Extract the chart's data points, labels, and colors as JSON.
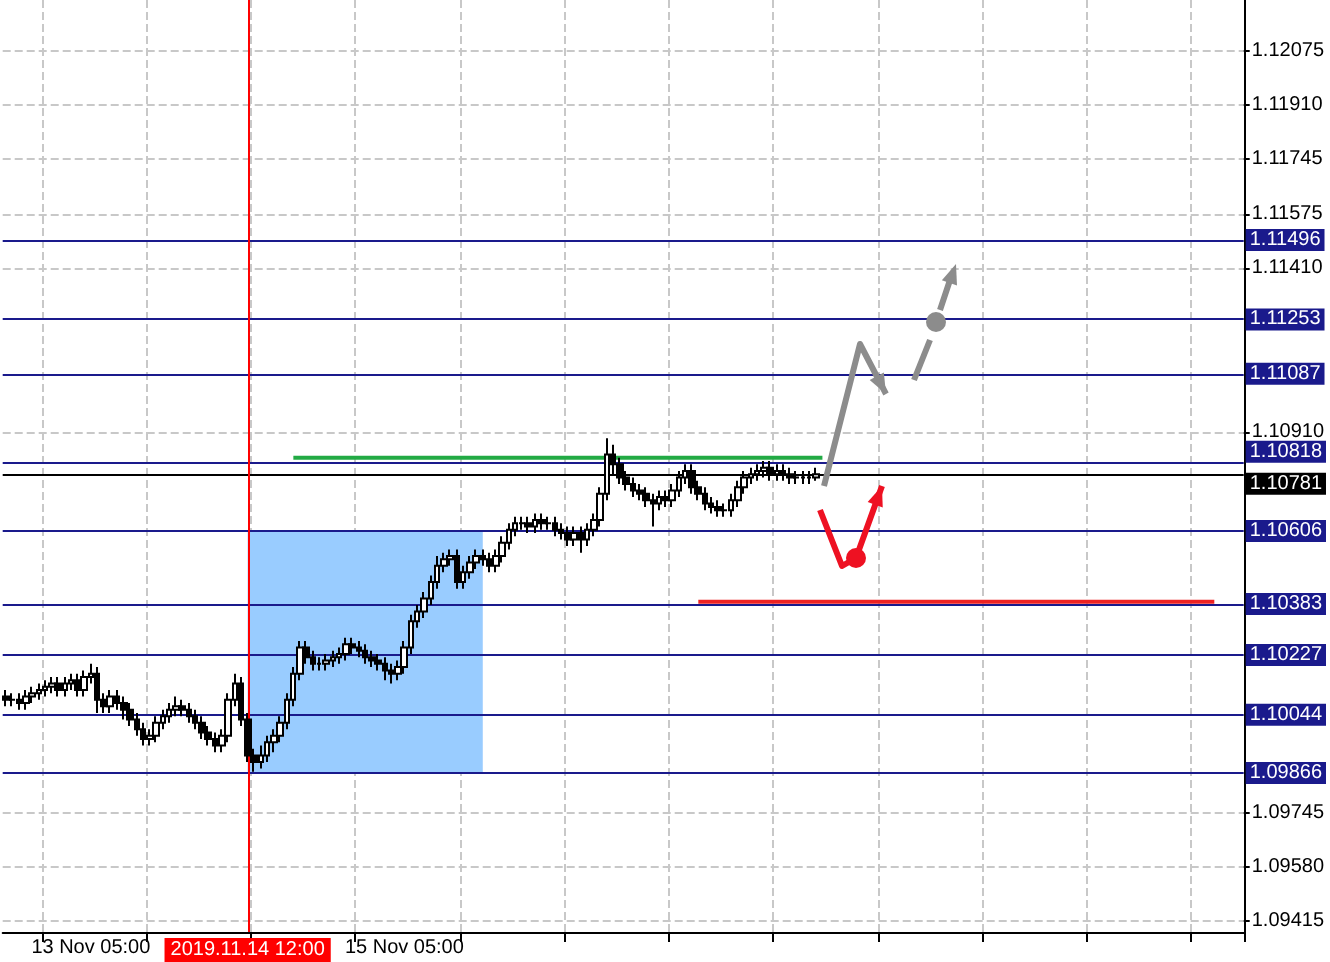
{
  "chart_data": {
    "type": "candlestick",
    "categories": [
      null,
      null,
      null,
      null,
      null,
      null,
      null,
      null,
      null,
      null,
      null,
      null,
      null,
      "13 Nov 05:00",
      null,
      null,
      null,
      null,
      null,
      null,
      null,
      null,
      null,
      null,
      null,
      null,
      null,
      null,
      null,
      null,
      null,
      null,
      null,
      null,
      null,
      null,
      null,
      "2019.11.14 12:00",
      null,
      null,
      null,
      null,
      null,
      null,
      null,
      null,
      null,
      null,
      null,
      null,
      null,
      null,
      null,
      null,
      null,
      null,
      null,
      null,
      null,
      null,
      null,
      "15 Nov 05:00",
      null,
      null,
      null,
      null,
      null,
      null,
      null,
      null,
      null,
      null,
      null,
      null,
      null,
      null,
      null,
      null,
      null,
      null,
      null,
      null,
      null,
      null,
      null,
      null,
      null,
      null,
      null,
      null,
      null,
      null,
      null,
      null,
      null,
      null,
      null,
      null,
      null,
      null,
      null,
      null,
      null,
      null,
      null,
      null,
      null,
      null,
      null,
      null,
      null,
      null,
      null,
      null,
      null,
      null,
      null,
      null,
      null,
      null,
      null,
      null,
      null,
      null,
      null,
      null,
      null,
      null,
      null,
      null,
      null,
      null,
      null,
      null,
      null,
      null,
      null,
      null,
      null,
      null,
      null,
      null,
      null,
      null,
      null,
      null,
      null,
      null,
      null,
      null,
      null,
      null,
      null,
      null,
      null,
      null,
      null,
      null,
      null,
      null,
      null,
      null,
      null,
      null,
      null,
      null,
      null,
      null,
      null,
      null,
      null,
      null,
      null,
      null,
      null,
      null,
      null,
      null,
      null,
      null,
      null,
      null,
      null,
      null,
      null,
      null,
      null,
      null,
      null,
      null
    ],
    "ohlc": [
      [
        1.101,
        1.1012,
        1.1007,
        1.1009
      ],
      [
        1.1009,
        1.1011,
        1.1007,
        1.1009
      ],
      [
        1.1009,
        1.1011,
        1.1006,
        1.1008
      ],
      [
        1.1008,
        1.1012,
        1.1006,
        1.101
      ],
      [
        1.101,
        1.1013,
        1.1008,
        1.1011
      ],
      [
        1.1011,
        1.1014,
        1.1009,
        1.1012
      ],
      [
        1.1012,
        1.1015,
        1.101,
        1.1013
      ],
      [
        1.1013,
        1.1016,
        1.1011,
        1.1014
      ],
      [
        1.1014,
        1.1016,
        1.101,
        1.1012
      ],
      [
        1.1012,
        1.1016,
        1.101,
        1.1014
      ],
      [
        1.1014,
        1.1017,
        1.1012,
        1.1015
      ],
      [
        1.1015,
        1.1017,
        1.101,
        1.1012
      ],
      [
        1.1012,
        1.1018,
        1.101,
        1.1016
      ],
      [
        1.1016,
        1.102,
        1.1014,
        1.1017
      ],
      [
        1.1017,
        1.1019,
        1.1005,
        1.1009
      ],
      [
        1.1009,
        1.1011,
        1.1005,
        1.1007
      ],
      [
        1.1007,
        1.1012,
        1.1005,
        1.101
      ],
      [
        1.101,
        1.1012,
        1.1006,
        1.1008
      ],
      [
        1.1008,
        1.101,
        1.1003,
        1.1006
      ],
      [
        1.1006,
        1.1008,
        1.1001,
        1.1003
      ],
      [
        1.1003,
        1.1005,
        1.0998,
        1.1
      ],
      [
        1.1,
        1.1002,
        1.0995,
        1.0997
      ],
      [
        1.0997,
        1.1,
        1.0995,
        1.0998
      ],
      [
        1.0998,
        1.1004,
        1.0996,
        1.1002
      ],
      [
        1.1002,
        1.1006,
        1.1,
        1.1004
      ],
      [
        1.1004,
        1.1008,
        1.1002,
        1.1006
      ],
      [
        1.1006,
        1.101,
        1.1004,
        1.1007
      ],
      [
        1.1007,
        1.1009,
        1.1004,
        1.1006
      ],
      [
        1.1006,
        1.1008,
        1.1002,
        1.1004
      ],
      [
        1.1004,
        1.1006,
        1.1,
        1.1002
      ],
      [
        1.1002,
        1.1004,
        1.0997,
        1.0999
      ],
      [
        1.0999,
        1.1001,
        1.0995,
        1.0997
      ],
      [
        1.0997,
        1.0999,
        1.0993,
        1.0995
      ],
      [
        1.0995,
        1.1,
        1.0993,
        1.0998
      ],
      [
        1.0998,
        1.1011,
        1.0996,
        1.1009
      ],
      [
        1.1009,
        1.1017,
        1.1007,
        1.1014
      ],
      [
        1.1014,
        1.1016,
        1.1001,
        1.1003
      ],
      [
        1.1003,
        1.1005,
        1.099,
        1.0992
      ],
      [
        1.0992,
        1.0994,
        1.0987,
        1.099
      ],
      [
        1.099,
        1.0995,
        1.0988,
        1.0992
      ],
      [
        1.0992,
        1.0998,
        1.099,
        1.0996
      ],
      [
        1.0996,
        1.1,
        1.0993,
        1.0998
      ],
      [
        1.0998,
        1.1004,
        1.0996,
        1.1002
      ],
      [
        1.1002,
        1.1011,
        1.1,
        1.1009
      ],
      [
        1.1009,
        1.1019,
        1.1007,
        1.1017
      ],
      [
        1.1017,
        1.1027,
        1.1015,
        1.1025
      ],
      [
        1.1025,
        1.1027,
        1.102,
        1.1022
      ],
      [
        1.1022,
        1.1024,
        1.1018,
        1.102
      ],
      [
        1.102,
        1.1022,
        1.1018,
        1.102
      ],
      [
        1.102,
        1.1023,
        1.1018,
        1.1021
      ],
      [
        1.1021,
        1.1024,
        1.1019,
        1.1022
      ],
      [
        1.1022,
        1.1025,
        1.102,
        1.1023
      ],
      [
        1.1023,
        1.1028,
        1.1021,
        1.1026
      ],
      [
        1.1026,
        1.1028,
        1.1023,
        1.1025
      ],
      [
        1.1025,
        1.1027,
        1.1022,
        1.1024
      ],
      [
        1.1024,
        1.1026,
        1.102,
        1.1022
      ],
      [
        1.1022,
        1.1024,
        1.1019,
        1.1021
      ],
      [
        1.1021,
        1.1023,
        1.1018,
        1.102
      ],
      [
        1.102,
        1.1022,
        1.1015,
        1.1018
      ],
      [
        1.1018,
        1.102,
        1.1014,
        1.1017
      ],
      [
        1.1017,
        1.1021,
        1.1015,
        1.1019
      ],
      [
        1.1019,
        1.1027,
        1.1017,
        1.1025
      ],
      [
        1.1025,
        1.1035,
        1.1023,
        1.1033
      ],
      [
        1.1033,
        1.1038,
        1.1031,
        1.1036
      ],
      [
        1.1036,
        1.1042,
        1.1034,
        1.104
      ],
      [
        1.104,
        1.1047,
        1.1038,
        1.1045
      ],
      [
        1.1045,
        1.1053,
        1.1043,
        1.105
      ],
      [
        1.105,
        1.1054,
        1.1048,
        1.1052
      ],
      [
        1.1052,
        1.1055,
        1.105,
        1.1053
      ],
      [
        1.1053,
        1.1055,
        1.1043,
        1.1045
      ],
      [
        1.1045,
        1.105,
        1.1043,
        1.1048
      ],
      [
        1.1048,
        1.1053,
        1.1046,
        1.1051
      ],
      [
        1.1051,
        1.1055,
        1.1049,
        1.1053
      ],
      [
        1.1053,
        1.1055,
        1.105,
        1.1052
      ],
      [
        1.1052,
        1.1054,
        1.1048,
        1.105
      ],
      [
        1.105,
        1.1055,
        1.1048,
        1.1053
      ],
      [
        1.1053,
        1.1059,
        1.1051,
        1.1057
      ],
      [
        1.1057,
        1.1063,
        1.1055,
        1.1061
      ],
      [
        1.1061,
        1.1065,
        1.1059,
        1.1063
      ],
      [
        1.1063,
        1.1065,
        1.1061,
        1.1063
      ],
      [
        1.1063,
        1.1065,
        1.106,
        1.1062
      ],
      [
        1.1062,
        1.1066,
        1.106,
        1.1064
      ],
      [
        1.1064,
        1.1066,
        1.1061,
        1.1063
      ],
      [
        1.1063,
        1.1065,
        1.1061,
        1.1063
      ],
      [
        1.1063,
        1.1065,
        1.1059,
        1.1061
      ],
      [
        1.1061,
        1.1063,
        1.1058,
        1.106
      ],
      [
        1.106,
        1.1062,
        1.1056,
        1.1058
      ],
      [
        1.1058,
        1.1062,
        1.1056,
        1.106
      ],
      [
        1.106,
        1.1062,
        1.1054,
        1.1058
      ],
      [
        1.1058,
        1.1063,
        1.1056,
        1.1061
      ],
      [
        1.1061,
        1.1066,
        1.1059,
        1.1064
      ],
      [
        1.1064,
        1.1074,
        1.1062,
        1.1072
      ],
      [
        1.1072,
        1.1089,
        1.107,
        1.1084
      ],
      [
        1.1084,
        1.1087,
        1.1078,
        1.1081
      ],
      [
        1.1081,
        1.1083,
        1.1075,
        1.1077
      ],
      [
        1.1077,
        1.1079,
        1.1073,
        1.1075
      ],
      [
        1.1075,
        1.1077,
        1.1071,
        1.1073
      ],
      [
        1.1073,
        1.1075,
        1.107,
        1.1072
      ],
      [
        1.1072,
        1.1074,
        1.1068,
        1.107
      ],
      [
        1.107,
        1.1072,
        1.1062,
        1.1069
      ],
      [
        1.1069,
        1.1073,
        1.1067,
        1.1071
      ],
      [
        1.1071,
        1.1073,
        1.1068,
        1.107
      ],
      [
        1.107,
        1.1075,
        1.1068,
        1.1073
      ],
      [
        1.1073,
        1.1079,
        1.1071,
        1.1077
      ],
      [
        1.1077,
        1.1081,
        1.1075,
        1.1079
      ],
      [
        1.1079,
        1.1081,
        1.1072,
        1.1074
      ],
      [
        1.1074,
        1.1076,
        1.107,
        1.1072
      ],
      [
        1.1072,
        1.1074,
        1.1067,
        1.1069
      ],
      [
        1.1069,
        1.1071,
        1.1066,
        1.1068
      ],
      [
        1.1068,
        1.107,
        1.1065,
        1.1067
      ],
      [
        1.1067,
        1.1069,
        1.1065,
        1.1067
      ],
      [
        1.1067,
        1.1072,
        1.1065,
        1.107
      ],
      [
        1.107,
        1.1076,
        1.1068,
        1.1074
      ],
      [
        1.1074,
        1.1079,
        1.1072,
        1.1077
      ],
      [
        1.1077,
        1.108,
        1.1075,
        1.1078
      ],
      [
        1.1078,
        1.1081,
        1.1076,
        1.1079
      ],
      [
        1.1079,
        1.1082,
        1.1077,
        1.108
      ],
      [
        1.108,
        1.1082,
        1.1076,
        1.1078
      ],
      [
        1.1078,
        1.1081,
        1.1076,
        1.1079
      ],
      [
        1.1079,
        1.1081,
        1.1076,
        1.1078
      ],
      [
        1.1078,
        1.108,
        1.1075,
        1.1077
      ],
      [
        1.1077,
        1.1079,
        1.1075,
        1.1077
      ],
      [
        1.1077,
        1.1079,
        1.1075,
        1.1077
      ],
      [
        1.1077,
        1.1079,
        1.1075,
        1.1077
      ],
      [
        1.1077,
        1.108,
        1.1076,
        1.1078
      ],
      null,
      null,
      null,
      null,
      null,
      null,
      null,
      null,
      null,
      null,
      null,
      null,
      null,
      null,
      null,
      null,
      null,
      null,
      null,
      null,
      null,
      null,
      null,
      null,
      null,
      null,
      null,
      null,
      null,
      null,
      null,
      null,
      null,
      null,
      null,
      null,
      null,
      null,
      null,
      null,
      null,
      null,
      null,
      null,
      null,
      null,
      null,
      null,
      null,
      null,
      null,
      null,
      null,
      null,
      null,
      null,
      null,
      null,
      null,
      null,
      null,
      null,
      null,
      null,
      null
    ],
    "series": [
      {
        "type": "line",
        "color": "#22aa44",
        "values": [
          null,
          null,
          null,
          null,
          null,
          null,
          null,
          null,
          null,
          null,
          null,
          null,
          null,
          null,
          null,
          null,
          null,
          null,
          null,
          null,
          null,
          null,
          null,
          null,
          null,
          null,
          null,
          null,
          null,
          null,
          null,
          null,
          null,
          null,
          null,
          null,
          null,
          null,
          null,
          null,
          null,
          null,
          null,
          null,
          1.1083,
          1.1083,
          1.1083,
          1.1083,
          1.1083,
          1.1083,
          1.1083,
          1.1083,
          1.1083,
          1.1083,
          1.1083,
          1.1083,
          1.1083,
          1.1083,
          1.1083,
          1.1083,
          1.1083,
          1.1083,
          1.1083,
          1.1083,
          1.1083,
          1.1083,
          1.1083,
          1.1083,
          1.1083,
          1.1083,
          1.1083,
          1.1083,
          1.1083,
          1.1083,
          1.1083,
          1.1083,
          1.1083,
          1.1083,
          1.1083,
          1.1083,
          1.1083,
          1.1083,
          1.1083,
          1.1083,
          1.1083,
          1.1083,
          1.1083,
          1.1083,
          1.1083,
          1.1083,
          1.1083,
          1.1083,
          1.1083,
          1.1083,
          1.1083,
          1.1083,
          1.1083,
          1.1083,
          1.1083,
          1.1083,
          1.1083,
          1.1083,
          1.1083,
          1.1083,
          1.1083,
          1.1083,
          1.1083,
          1.1083,
          1.1083,
          1.1083,
          1.1083,
          1.1083,
          1.1083,
          1.1083,
          1.1083,
          1.1083,
          1.1083,
          1.1083,
          1.1083,
          1.1083,
          1.1083,
          1.1083,
          1.1083,
          1.1083,
          1.1083,
          1.1083,
          null,
          null,
          null,
          null,
          null,
          null,
          null,
          null,
          null,
          null,
          null,
          null,
          null,
          null,
          null,
          null,
          null,
          null,
          null,
          null,
          null,
          null,
          null,
          null,
          null,
          null,
          null,
          null,
          null,
          null,
          null,
          null,
          null,
          null,
          null,
          null,
          null,
          null,
          null,
          null,
          null,
          null,
          null,
          null,
          null,
          null,
          null,
          null,
          null,
          null,
          null,
          null,
          null,
          null,
          null,
          null,
          null,
          null,
          null,
          null,
          null,
          null,
          null,
          null
        ]
      },
      {
        "type": "line",
        "color": "#ee2222",
        "values": [
          null,
          null,
          null,
          null,
          null,
          null,
          null,
          null,
          null,
          null,
          null,
          null,
          null,
          null,
          null,
          null,
          null,
          null,
          null,
          null,
          null,
          null,
          null,
          null,
          null,
          null,
          null,
          null,
          null,
          null,
          null,
          null,
          null,
          null,
          null,
          null,
          null,
          null,
          null,
          null,
          null,
          null,
          null,
          null,
          null,
          null,
          null,
          null,
          null,
          null,
          null,
          null,
          null,
          null,
          null,
          null,
          null,
          null,
          null,
          null,
          null,
          null,
          null,
          null,
          null,
          null,
          null,
          null,
          null,
          null,
          null,
          null,
          null,
          null,
          null,
          null,
          null,
          null,
          null,
          null,
          null,
          null,
          null,
          null,
          null,
          null,
          null,
          null,
          null,
          null,
          null,
          null,
          null,
          null,
          null,
          null,
          null,
          null,
          null,
          null,
          null,
          null,
          null,
          null,
          null,
          null,
          1.1039,
          1.1039,
          1.1039,
          1.1039,
          1.1039,
          1.1039,
          1.1039,
          1.1039,
          1.1039,
          1.1039,
          1.1039,
          1.1039,
          1.1039,
          1.1039,
          1.1039,
          1.1039,
          1.1039,
          1.1039,
          1.1039,
          1.1039,
          1.1039,
          1.1039,
          1.1039,
          1.1039,
          1.1039,
          1.1039,
          1.1039,
          1.1039,
          1.1039,
          1.1039,
          1.1039,
          1.1039,
          1.1039,
          1.1039,
          1.1039,
          1.1039,
          1.1039,
          1.1039,
          1.1039,
          1.1039,
          1.1039,
          1.1039,
          1.1039,
          1.1039,
          1.1039,
          1.1039,
          1.1039,
          1.1039,
          1.1039,
          1.1039,
          1.1039,
          1.1039,
          1.1039,
          1.1039,
          1.1039,
          1.1039,
          1.1039,
          1.1039,
          1.1039,
          1.1039,
          1.1039,
          1.1039,
          1.1039,
          1.1039,
          1.1039,
          1.1039,
          1.1039,
          1.1039,
          1.1039,
          1.1039,
          1.1039,
          1.1039,
          1.1039,
          1.1039,
          1.1039,
          1.1039,
          1.1039,
          1.1039,
          1.1039,
          1.1039,
          null,
          null,
          null,
          null
        ]
      }
    ],
    "ylim": [
      1.0938,
      1.1223
    ],
    "yticks": [
      1.09415,
      {
        "value": 1.0958,
        "label": "1.09580"
      },
      1.09745,
      {
        "value": 1.1091,
        "label": "1.10910"
      },
      {
        "value": 1.1141,
        "label": "1.11410"
      },
      1.11575,
      1.11745,
      {
        "value": 1.1191,
        "label": "1.11910"
      },
      1.12075
    ],
    "ref_lines": [
      {
        "axis": "y",
        "value": 1.11496,
        "label": "1.11496",
        "color": "#1a1a8c"
      },
      {
        "axis": "y",
        "value": 1.11253,
        "label": "1.11253",
        "color": "#1a1a8c"
      },
      {
        "axis": "y",
        "value": 1.11087,
        "label": "1.11087",
        "color": "#1a1a8c"
      },
      {
        "axis": "y",
        "value": 1.10818,
        "label": "1.10818",
        "color": "#1a1a8c"
      },
      {
        "axis": "y",
        "value": 1.10781,
        "label": "1.10781",
        "color": "#000000"
      },
      {
        "axis": "y",
        "value": 1.10606,
        "label": "1.10606",
        "color": "#1a1a8c"
      },
      {
        "axis": "y",
        "value": 1.10383,
        "label": "1.10383",
        "color": "#1a1a8c"
      },
      {
        "axis": "y",
        "value": 1.10227,
        "label": "1.10227",
        "color": "#1a1a8c"
      },
      {
        "axis": "y",
        "value": 1.10044,
        "label": "1.10044",
        "color": "#1a1a8c"
      },
      {
        "axis": "y",
        "value": 1.09866,
        "label": "1.09866",
        "color": "#1a1a8c"
      },
      {
        "axis": "x",
        "value": "2019.11.14 12:00",
        "color": "#ff0000"
      }
    ],
    "bands": [
      {
        "axis": "y",
        "from": 1.09866,
        "to": 1.10606,
        "color": "#99ccff"
      }
    ],
    "grid": true,
    "marker": "none",
    "line_style": "solid"
  }
}
